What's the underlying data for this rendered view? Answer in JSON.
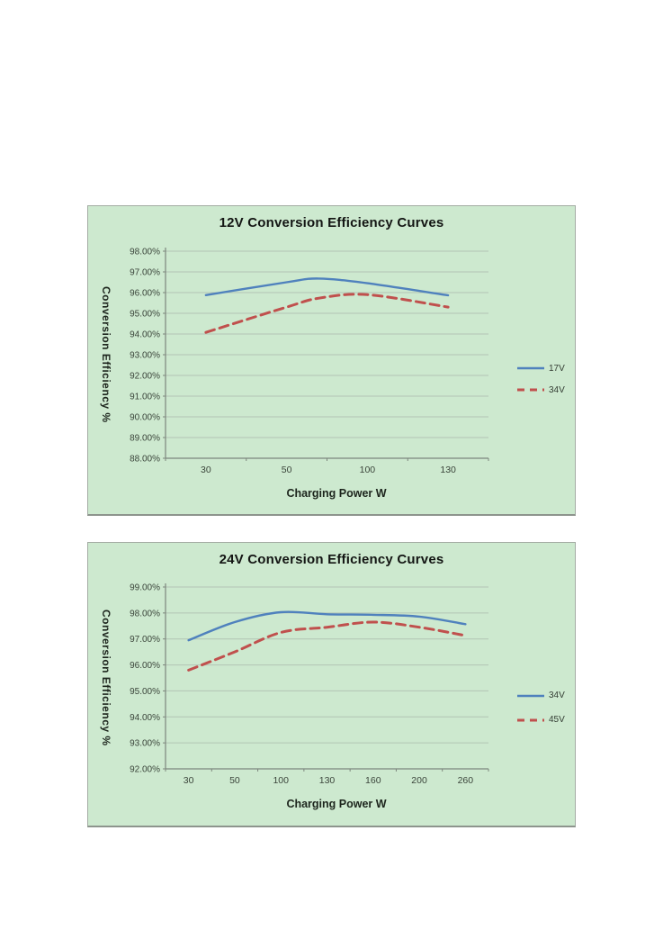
{
  "page": {
    "background": "#ffffff"
  },
  "colors": {
    "panel_bg": "#cde9cf",
    "panel_border": "#a3aca3",
    "grid": "#b2c4b4",
    "axis": "#7d867d",
    "tick_text": "#3a443a",
    "title_text": "#131513",
    "series_blue": "#4f81bd",
    "series_red": "#c0504d"
  },
  "chart_data": [
    {
      "type": "line",
      "title": "12V Conversion Efficiency Curves",
      "xlabel": "Charging Power W",
      "ylabel": "Conversion Efficiency %",
      "grid": true,
      "legend_position": "right",
      "ylim": [
        88,
        98
      ],
      "y_ticks": [
        "98.00%",
        "97.00%",
        "96.00%",
        "95.00%",
        "94.00%",
        "93.00%",
        "92.00%",
        "91.00%",
        "90.00%",
        "89.00%",
        "88.00%"
      ],
      "x_ticks": [
        30,
        50,
        100,
        130
      ],
      "series": [
        {
          "name": "17V",
          "style": "solid",
          "color": "#4f81bd",
          "x": [
            30,
            50,
            70,
            100,
            130
          ],
          "values": [
            95.88,
            96.5,
            96.68,
            96.45,
            95.87
          ]
        },
        {
          "name": "34V",
          "style": "dashed",
          "color": "#c0504d",
          "x": [
            30,
            50,
            70,
            100,
            130
          ],
          "values": [
            94.08,
            95.3,
            95.73,
            95.9,
            95.3
          ]
        }
      ]
    },
    {
      "type": "line",
      "title": "24V Conversion Efficiency Curves",
      "xlabel": "Charging Power W",
      "ylabel": "Conversion Efficiency %",
      "grid": true,
      "legend_position": "right",
      "ylim": [
        92,
        99
      ],
      "y_ticks": [
        "99.00%",
        "98.00%",
        "97.00%",
        "96.00%",
        "95.00%",
        "94.00%",
        "93.00%",
        "92.00%"
      ],
      "x_ticks": [
        30,
        50,
        100,
        130,
        160,
        200,
        260
      ],
      "series": [
        {
          "name": "34V",
          "style": "solid",
          "color": "#4f81bd",
          "x": [
            30,
            50,
            100,
            130,
            160,
            200,
            260
          ],
          "values": [
            96.95,
            97.65,
            98.03,
            97.95,
            97.93,
            97.86,
            97.57
          ]
        },
        {
          "name": "45V",
          "style": "dashed",
          "color": "#c0504d",
          "x": [
            30,
            50,
            100,
            130,
            160,
            200,
            260
          ],
          "values": [
            95.8,
            96.5,
            97.25,
            97.45,
            97.65,
            97.45,
            97.13
          ]
        }
      ]
    }
  ]
}
